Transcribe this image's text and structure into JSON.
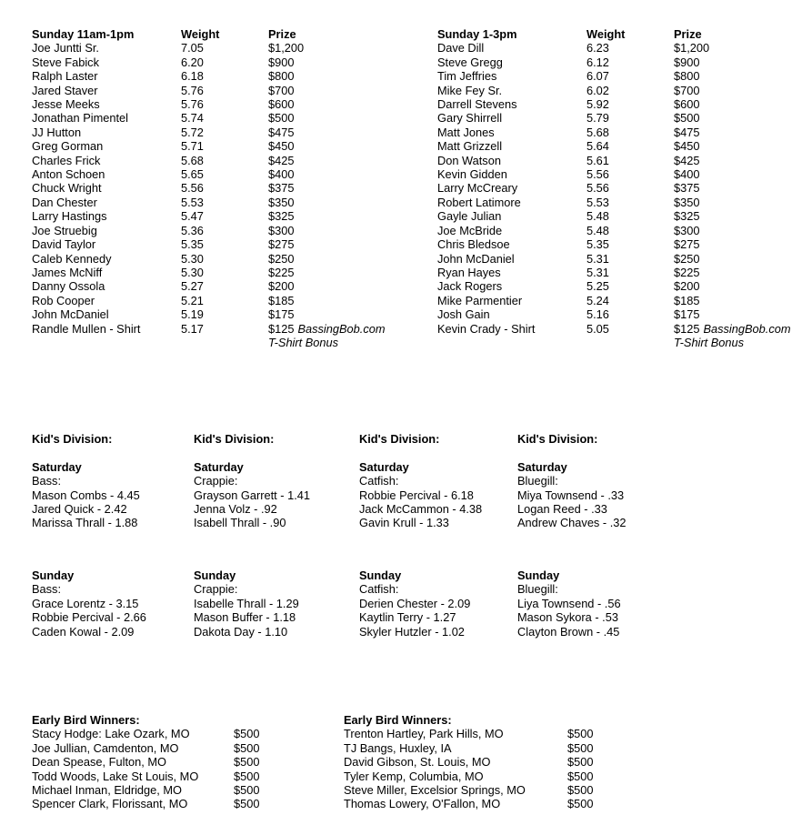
{
  "tables": [
    {
      "title": "Sunday 11am-1pm",
      "weight_header": "Weight",
      "prize_header": "Prize",
      "rows": [
        {
          "name": "Joe Juntti Sr.",
          "weight": "7.05",
          "prize": "$1,200"
        },
        {
          "name": "Steve Fabick",
          "weight": "6.20",
          "prize": "$900"
        },
        {
          "name": "Ralph Laster",
          "weight": "6.18",
          "prize": "$800"
        },
        {
          "name": "Jared Staver",
          "weight": "5.76",
          "prize": "$700"
        },
        {
          "name": "Jesse Meeks",
          "weight": "5.76",
          "prize": "$600"
        },
        {
          "name": "Jonathan Pimentel",
          "weight": "5.74",
          "prize": "$500"
        },
        {
          "name": "JJ Hutton",
          "weight": "5.72",
          "prize": "$475"
        },
        {
          "name": "Greg Gorman",
          "weight": "5.71",
          "prize": "$450"
        },
        {
          "name": "Charles Frick",
          "weight": "5.68",
          "prize": "$425"
        },
        {
          "name": "Anton Schoen",
          "weight": "5.65",
          "prize": "$400"
        },
        {
          "name": "Chuck Wright",
          "weight": "5.56",
          "prize": "$375"
        },
        {
          "name": "Dan Chester",
          "weight": "5.53",
          "prize": "$350"
        },
        {
          "name": "Larry Hastings",
          "weight": "5.47",
          "prize": "$325"
        },
        {
          "name": "Joe Struebig",
          "weight": "5.36",
          "prize": "$300"
        },
        {
          "name": "David Taylor",
          "weight": "5.35",
          "prize": "$275"
        },
        {
          "name": "Caleb Kennedy",
          "weight": "5.30",
          "prize": "$250"
        },
        {
          "name": "James McNiff",
          "weight": "5.30",
          "prize": "$225"
        },
        {
          "name": "Danny Ossola",
          "weight": "5.27",
          "prize": "$200"
        },
        {
          "name": "Rob Cooper",
          "weight": "5.21",
          "prize": "$185"
        },
        {
          "name": "John McDaniel",
          "weight": "5.19",
          "prize": "$175"
        },
        {
          "name": "Randle Mullen - Shirt",
          "weight": "5.17",
          "prize": "$125",
          "prize_italic": "BassingBob.com",
          "prize_note2": "T-Shirt Bonus"
        }
      ]
    },
    {
      "title": "Sunday 1-3pm",
      "weight_header": "Weight",
      "prize_header": "Prize",
      "rows": [
        {
          "name": "Dave Dill",
          "weight": "6.23",
          "prize": "$1,200"
        },
        {
          "name": "Steve Gregg",
          "weight": "6.12",
          "prize": "$900"
        },
        {
          "name": "Tim Jeffries",
          "weight": "6.07",
          "prize": "$800"
        },
        {
          "name": "Mike Fey Sr.",
          "weight": "6.02",
          "prize": "$700"
        },
        {
          "name": "Darrell Stevens",
          "weight": "5.92",
          "prize": "$600"
        },
        {
          "name": "Gary Shirrell",
          "weight": "5.79",
          "prize": "$500"
        },
        {
          "name": "Matt Jones",
          "weight": "5.68",
          "prize": "$475"
        },
        {
          "name": "Matt Grizzell",
          "weight": "5.64",
          "prize": "$450"
        },
        {
          "name": "Don Watson",
          "weight": "5.61",
          "prize": "$425"
        },
        {
          "name": "Kevin Gidden",
          "weight": "5.56",
          "prize": "$400"
        },
        {
          "name": "Larry McCreary",
          "weight": "5.56",
          "prize": "$375"
        },
        {
          "name": "Robert Latimore",
          "weight": "5.53",
          "prize": "$350"
        },
        {
          "name": "Gayle Julian",
          "weight": "5.48",
          "prize": "$325"
        },
        {
          "name": "Joe McBride",
          "weight": "5.48",
          "prize": "$300"
        },
        {
          "name": "Chris Bledsoe",
          "weight": "5.35",
          "prize": "$275"
        },
        {
          "name": "John McDaniel",
          "weight": "5.31",
          "prize": "$250"
        },
        {
          "name": "Ryan Hayes",
          "weight": "5.31",
          "prize": "$225"
        },
        {
          "name": "Jack Rogers",
          "weight": "5.25",
          "prize": "$200"
        },
        {
          "name": "Mike Parmentier",
          "weight": "5.24",
          "prize": "$185"
        },
        {
          "name": "Josh Gain",
          "weight": "5.16",
          "prize": "$175"
        },
        {
          "name": "Kevin Crady - Shirt",
          "weight": "5.05",
          "prize": "$125",
          "prize_italic": "BassingBob.com",
          "prize_note2": "T-Shirt Bonus"
        }
      ]
    }
  ],
  "kids": {
    "saturday_columns": [
      {
        "heading": "Kid's Division:",
        "day": "Saturday",
        "category": "Bass:",
        "e1": "Mason Combs - 4.45",
        "e2": "Jared Quick - 2.42",
        "e3": "Marissa Thrall - 1.88"
      },
      {
        "heading": "Kid's Division:",
        "day": "Saturday",
        "category": "Crappie:",
        "e1": "Grayson Garrett - 1.41",
        "e2": "Jenna Volz - .92",
        "e3": "Isabell Thrall - .90"
      },
      {
        "heading": "Kid's Division:",
        "day": "Saturday",
        "category": "Catfish:",
        "e1": "Robbie Percival - 6.18",
        "e2": "Jack McCammon - 4.38",
        "e3": "Gavin Krull - 1.33"
      },
      {
        "heading": "Kid's Division:",
        "day": "Saturday",
        "category": "Bluegill:",
        "e1": "Miya Townsend - .33",
        "e2": "Logan Reed - .33",
        "e3": "Andrew Chaves - .32"
      }
    ],
    "sunday_columns": [
      {
        "day": "Sunday",
        "category": "Bass:",
        "e1": "Grace Lorentz - 3.15",
        "e2": "Robbie Percival - 2.66",
        "e3": "Caden Kowal - 2.09"
      },
      {
        "day": "Sunday",
        "category": "Crappie:",
        "e1": "Isabelle Thrall - 1.29",
        "e2": "Mason Buffer - 1.18",
        "e3": "Dakota Day - 1.10"
      },
      {
        "day": "Sunday",
        "category": "Catfish:",
        "e1": "Derien Chester - 2.09",
        "e2": "Kaytlin Terry - 1.27",
        "e3": "Skyler Hutzler - 1.02"
      },
      {
        "day": "Sunday",
        "category": "Bluegill:",
        "e1": "Liya Townsend - .56",
        "e2": "Mason Sykora - .53",
        "e3": "Clayton Brown - .45"
      }
    ]
  },
  "early_bird": [
    {
      "heading": "Early Bird Winners:",
      "rows": [
        {
          "name": "Stacy Hodge: Lake Ozark, MO",
          "prize": "$500"
        },
        {
          "name": "Joe Jullian, Camdenton, MO",
          "prize": "$500"
        },
        {
          "name": "Dean Spease, Fulton, MO",
          "prize": "$500"
        },
        {
          "name": "Todd Woods, Lake St Louis, MO",
          "prize": "$500"
        },
        {
          "name": "Michael Inman, Eldridge, MO",
          "prize": "$500"
        },
        {
          "name": "Spencer Clark, Florissant, MO",
          "prize": "$500"
        }
      ]
    },
    {
      "heading": "Early Bird Winners:",
      "rows": [
        {
          "name": "Trenton Hartley, Park Hills, MO",
          "prize": "$500"
        },
        {
          "name": "TJ Bangs, Huxley, IA",
          "prize": "$500"
        },
        {
          "name": "David Gibson, St. Louis, MO",
          "prize": "$500"
        },
        {
          "name": "Tyler Kemp, Columbia, MO",
          "prize": "$500"
        },
        {
          "name": "Steve Miller, Excelsior Springs, MO",
          "prize": "$500"
        },
        {
          "name": "Thomas Lowery, O'Fallon, MO",
          "prize": "$500"
        }
      ]
    }
  ]
}
